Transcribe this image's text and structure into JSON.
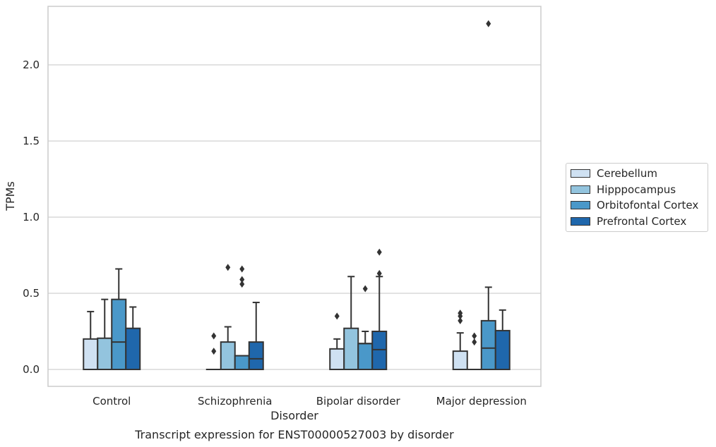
{
  "caption": "Transcript expression for ENST00000527003 by disorder",
  "chart_data": {
    "type": "box",
    "xlabel": "Disorder",
    "ylabel": "TPMs",
    "ylim": [
      -0.11,
      2.4
    ],
    "y_ticks": [
      "0.0",
      "0.5",
      "1.0",
      "1.5",
      "2.0"
    ],
    "y_tick_values": [
      0,
      0.5,
      1.0,
      1.5,
      2.0
    ],
    "grid": "horizontal",
    "legend_position": "right",
    "categories": [
      "Control",
      "Schizophrenia",
      "Bipolar disorder",
      "Major depression"
    ],
    "series": [
      {
        "name": "Cerebellum",
        "color": "#cfe1f2",
        "boxes": [
          {
            "q1": 0,
            "median": 0,
            "q3": 0.2,
            "whisker_low": 0,
            "whisker_high": 0.38,
            "outliers": []
          },
          {
            "q1": 0,
            "median": 0,
            "q3": 0,
            "whisker_low": 0,
            "whisker_high": 0,
            "outliers": [
              0.12,
              0.22
            ]
          },
          {
            "q1": 0,
            "median": 0,
            "q3": 0.135,
            "whisker_low": 0,
            "whisker_high": 0.2,
            "outliers": [
              0.35
            ]
          },
          {
            "q1": 0,
            "median": 0,
            "q3": 0.12,
            "whisker_low": 0,
            "whisker_high": 0.24,
            "outliers": [
              0.32,
              0.35,
              0.37
            ]
          }
        ]
      },
      {
        "name": "Hipppocampus",
        "color": "#93c4de",
        "boxes": [
          {
            "q1": 0,
            "median": 0,
            "q3": 0.205,
            "whisker_low": 0,
            "whisker_high": 0.46,
            "outliers": []
          },
          {
            "q1": 0,
            "median": 0,
            "q3": 0.18,
            "whisker_low": 0,
            "whisker_high": 0.28,
            "outliers": [
              0.67
            ]
          },
          {
            "q1": 0,
            "median": 0,
            "q3": 0.27,
            "whisker_low": 0,
            "whisker_high": 0.61,
            "outliers": []
          },
          {
            "q1": 0,
            "median": 0,
            "q3": 0,
            "whisker_low": 0,
            "whisker_high": 0,
            "outliers": [
              0.18,
              0.22
            ]
          }
        ]
      },
      {
        "name": "Orbitofontal Cortex",
        "color": "#4a98c9",
        "boxes": [
          {
            "q1": 0,
            "median": 0.18,
            "q3": 0.46,
            "whisker_low": 0,
            "whisker_high": 0.66,
            "outliers": []
          },
          {
            "q1": 0,
            "median": 0.09,
            "q3": 0.09,
            "whisker_low": 0,
            "whisker_high": 0.09,
            "outliers": [
              0.56,
              0.59,
              0.66
            ]
          },
          {
            "q1": 0,
            "median": 0.17,
            "q3": 0.17,
            "whisker_low": 0,
            "whisker_high": 0.25,
            "outliers": [
              0.53
            ]
          },
          {
            "q1": 0,
            "median": 0.14,
            "q3": 0.32,
            "whisker_low": 0,
            "whisker_high": 0.54,
            "outliers": [
              2.27
            ]
          }
        ]
      },
      {
        "name": "Prefrontal Cortex",
        "color": "#1f67ac",
        "boxes": [
          {
            "q1": 0,
            "median": 0,
            "q3": 0.27,
            "whisker_low": 0,
            "whisker_high": 0.41,
            "outliers": []
          },
          {
            "q1": 0,
            "median": 0.07,
            "q3": 0.18,
            "whisker_low": 0,
            "whisker_high": 0.44,
            "outliers": []
          },
          {
            "q1": 0,
            "median": 0.13,
            "q3": 0.25,
            "whisker_low": 0,
            "whisker_high": 0.61,
            "outliers": [
              0.63,
              0.77
            ]
          },
          {
            "q1": 0,
            "median": 0,
            "q3": 0.255,
            "whisker_low": 0,
            "whisker_high": 0.39,
            "outliers": []
          }
        ]
      }
    ]
  }
}
